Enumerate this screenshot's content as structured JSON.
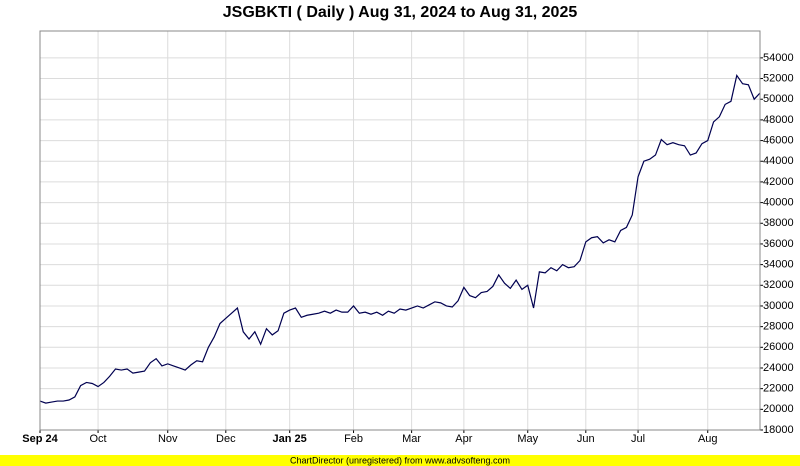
{
  "chart_data": {
    "type": "line",
    "title": "JSGBKTI ( Daily ) Aug 31, 2024 to Aug 31, 2025",
    "footer": "ChartDirector (unregistered) from www.advsofteng.com",
    "categories": [
      "Sep 24",
      null,
      null,
      null,
      null,
      null,
      null,
      null,
      null,
      null,
      "Oct",
      null,
      null,
      null,
      null,
      null,
      null,
      null,
      null,
      null,
      null,
      null,
      "Nov",
      null,
      null,
      null,
      null,
      null,
      null,
      null,
      null,
      null,
      "Dec",
      null,
      null,
      null,
      null,
      null,
      null,
      null,
      null,
      null,
      null,
      "Jan 25",
      null,
      null,
      null,
      null,
      null,
      null,
      null,
      null,
      null,
      null,
      "Feb",
      null,
      null,
      null,
      null,
      null,
      null,
      null,
      null,
      null,
      "Mar",
      null,
      null,
      null,
      null,
      null,
      null,
      null,
      null,
      "Apr",
      null,
      null,
      null,
      null,
      null,
      null,
      null,
      null,
      null,
      null,
      "May",
      null,
      null,
      null,
      null,
      null,
      null,
      null,
      null,
      null,
      "Jun",
      null,
      null,
      null,
      null,
      null,
      null,
      null,
      null,
      "Jul",
      null,
      null,
      null,
      null,
      null,
      null,
      null,
      null,
      null,
      null,
      null,
      "Aug",
      null,
      null,
      null,
      null,
      null,
      null,
      null,
      null,
      null
    ],
    "series": [
      {
        "name": "JSGBKTI",
        "color": "#000050",
        "values": [
          20800,
          20600,
          20700,
          20800,
          20800,
          20900,
          21200,
          22300,
          22600,
          22500,
          22200,
          22600,
          23200,
          23900,
          23800,
          23900,
          23500,
          23600,
          23700,
          24500,
          24900,
          24200,
          24400,
          24200,
          24000,
          23800,
          24300,
          24700,
          24600,
          26000,
          27000,
          28300,
          28800,
          29300,
          29800,
          27500,
          26800,
          27500,
          26300,
          27800,
          27200,
          27600,
          29300,
          29600,
          29800,
          28900,
          29100,
          29200,
          29300,
          29500,
          29300,
          29600,
          29400,
          29400,
          30000,
          29300,
          29400,
          29200,
          29400,
          29100,
          29500,
          29300,
          29700,
          29600,
          29800,
          30000,
          29800,
          30100,
          30400,
          30300,
          30000,
          29900,
          30500,
          31800,
          31000,
          30800,
          31300,
          31400,
          31900,
          33000,
          32200,
          31700,
          32500,
          31600,
          32000,
          29800,
          33300,
          33200,
          33700,
          33400,
          34000,
          33700,
          33800,
          34400,
          36200,
          36600,
          36700,
          36100,
          36400,
          36200,
          37300,
          37600,
          38800,
          42500,
          44000,
          44200,
          44600,
          46100,
          45600,
          45800,
          45600,
          45500,
          44600,
          44800,
          45700,
          46000,
          47800,
          48300,
          49500,
          49800,
          52300,
          51500,
          51400,
          50000,
          50600
        ]
      }
    ],
    "ylim": [
      18000,
      56600
    ],
    "yticks": [
      18000,
      20000,
      22000,
      24000,
      26000,
      28000,
      30000,
      32000,
      34000,
      36000,
      38000,
      40000,
      42000,
      44000,
      46000,
      48000,
      50000,
      52000,
      54000
    ],
    "grid": true
  }
}
